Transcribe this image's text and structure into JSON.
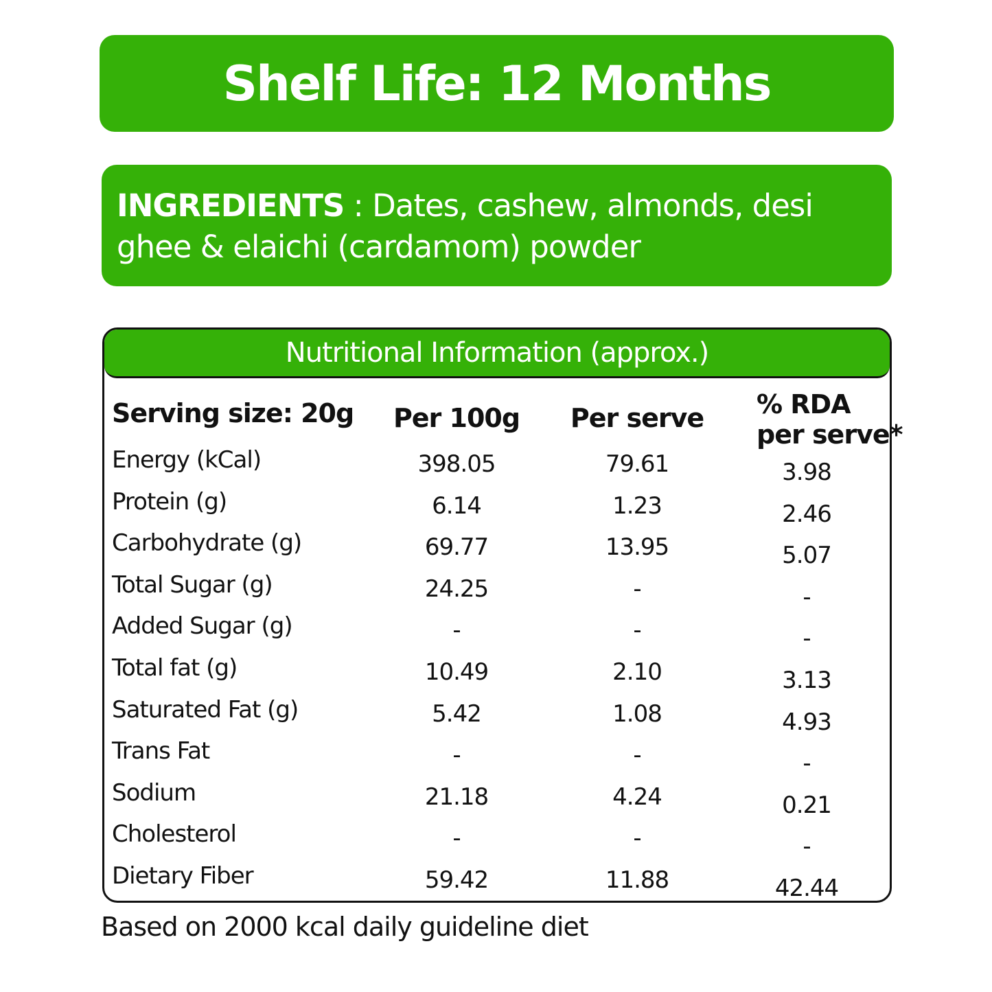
{
  "shelf_life": "Shelf Life: 12 Months",
  "ingredients": {
    "label": "INGREDIENTS",
    "text": " : Dates, cashew, almonds, desi ghee & elaichi (cardamom) powder"
  },
  "nutrition": {
    "title": "Nutritional Information (approx.)",
    "headers": [
      "Serving size: 20g",
      "Per 100g",
      "Per serve",
      "% RDA",
      "per serve*"
    ],
    "rows": [
      {
        "name": "Energy (kCal)",
        "per100": "398.05",
        "serve": "79.61",
        "rda": "3.98"
      },
      {
        "name": "Protein (g)",
        "per100": "6.14",
        "serve": "1.23",
        "rda": "2.46"
      },
      {
        "name": "Carbohydrate (g)",
        "per100": "69.77",
        "serve": "13.95",
        "rda": "5.07"
      },
      {
        "name": "Total Sugar (g)",
        "per100": "24.25",
        "serve": "-",
        "rda": "-"
      },
      {
        "name": "Added Sugar (g)",
        "per100": "-",
        "serve": "-",
        "rda": "-"
      },
      {
        "name": "Total fat (g)",
        "per100": "10.49",
        "serve": "2.10",
        "rda": "3.13"
      },
      {
        "name": "Saturated Fat (g)",
        "per100": "5.42",
        "serve": "1.08",
        "rda": "4.93"
      },
      {
        "name": "Trans Fat",
        "per100": "-",
        "serve": "-",
        "rda": "-"
      },
      {
        "name": "Sodium",
        "per100": "21.18",
        "serve": "4.24",
        "rda": "0.21"
      },
      {
        "name": "Cholesterol",
        "per100": "-",
        "serve": "-",
        "rda": "-"
      },
      {
        "name": "Dietary Fiber",
        "per100": "59.42",
        "serve": "11.88",
        "rda": "42.44"
      }
    ]
  },
  "footnote": "Based on 2000 kcal daily guideline diet",
  "colors": {
    "accent": "#35b108"
  }
}
